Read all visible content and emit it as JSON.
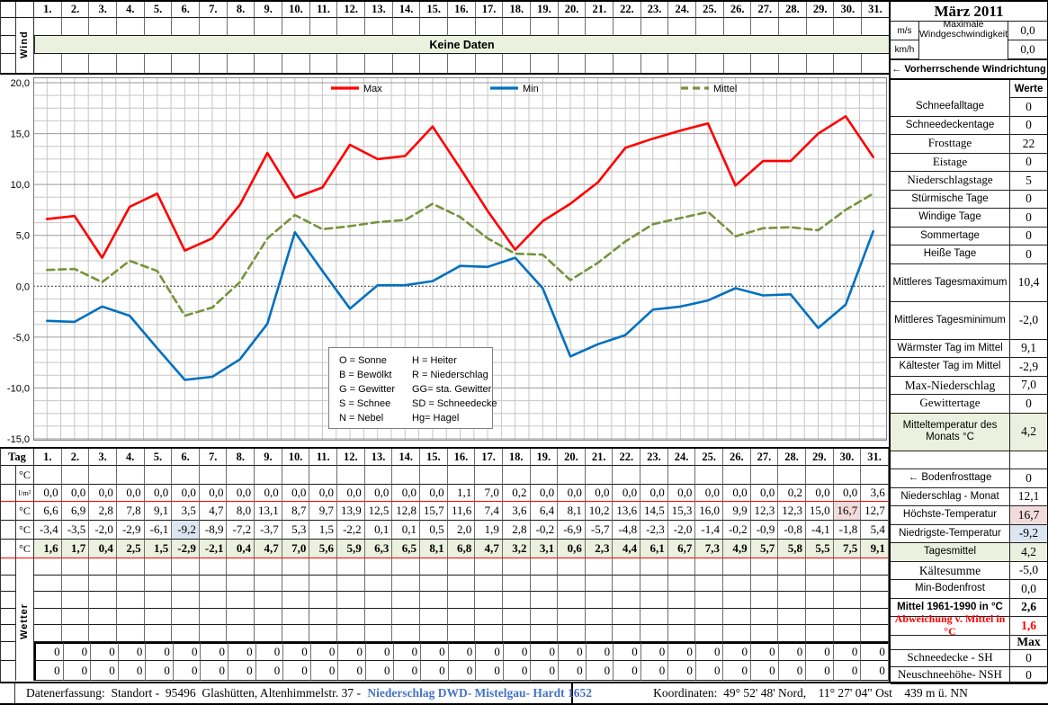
{
  "title": "März 2011",
  "days": [
    "1.",
    "2.",
    "3.",
    "4.",
    "5.",
    "6.",
    "7.",
    "8.",
    "9.",
    "10.",
    "11.",
    "12.",
    "13.",
    "14.",
    "15.",
    "16.",
    "17.",
    "18.",
    "19.",
    "20.",
    "21.",
    "22.",
    "23.",
    "24.",
    "25.",
    "26.",
    "27.",
    "28.",
    "29.",
    "30.",
    "31."
  ],
  "colors": {
    "band_green": "#EBF1DE",
    "highlight_pink": "#F2DCDB",
    "highlight_blue": "#DCE6F1",
    "max_line": "#FF0000",
    "min_line": "#0070C0",
    "mittel_line": "#77933C",
    "link_blue": "#4472C4",
    "alert_red": "#FF0000"
  },
  "wind_panel": {
    "side_label": "Wind",
    "no_data": "Keine Daten",
    "units": [
      "m/s",
      "km/h"
    ],
    "label": "Maximale Windgeschwindigkeit",
    "values": [
      "0,0",
      "0,0"
    ],
    "direction": "←  Vorherrschende Windrichtung"
  },
  "chart_data": {
    "type": "line",
    "x": [
      1,
      2,
      3,
      4,
      5,
      6,
      7,
      8,
      9,
      10,
      11,
      12,
      13,
      14,
      15,
      16,
      17,
      18,
      19,
      20,
      21,
      22,
      23,
      24,
      25,
      26,
      27,
      28,
      29,
      30,
      31
    ],
    "ylim": [
      -15,
      20
    ],
    "ytick_step": 5,
    "grid": true,
    "legend_position": "top-inside",
    "series": [
      {
        "name": "Max",
        "color": "#FF0000",
        "dash": null,
        "values": [
          6.6,
          6.9,
          2.8,
          7.8,
          9.1,
          3.5,
          4.7,
          8.0,
          13.1,
          8.7,
          9.7,
          13.9,
          12.5,
          12.8,
          15.7,
          11.6,
          7.4,
          3.6,
          6.4,
          8.1,
          10.2,
          13.6,
          14.5,
          15.3,
          16.0,
          9.9,
          12.3,
          12.3,
          15.0,
          16.7,
          12.7
        ]
      },
      {
        "name": "Min",
        "color": "#0070C0",
        "dash": null,
        "values": [
          -3.4,
          -3.5,
          -2.0,
          -2.9,
          -6.1,
          -9.2,
          -8.9,
          -7.2,
          -3.7,
          5.3,
          1.5,
          -2.2,
          0.1,
          0.1,
          0.5,
          2.0,
          1.9,
          2.8,
          -0.2,
          -6.9,
          -5.7,
          -4.8,
          -2.3,
          -2.0,
          -1.4,
          -0.2,
          -0.9,
          -0.8,
          -4.1,
          -1.8,
          5.4
        ]
      },
      {
        "name": "Mittel",
        "color": "#77933C",
        "dash": "8,5",
        "values": [
          1.6,
          1.7,
          0.4,
          2.5,
          1.5,
          -2.9,
          -2.1,
          0.4,
          4.7,
          7.0,
          5.6,
          5.9,
          6.3,
          6.5,
          8.1,
          6.8,
          4.7,
          3.2,
          3.1,
          0.6,
          2.3,
          4.4,
          6.1,
          6.7,
          7.3,
          4.9,
          5.7,
          5.8,
          5.5,
          7.5,
          9.1
        ]
      }
    ],
    "weather_codes": {
      "left": [
        "O = Sonne",
        "B = Bewölkt",
        "G = Gewitter",
        "S = Schnee",
        "N = Nebel"
      ],
      "right": [
        "H = Heiter",
        "R = Niederschlag",
        "GG= sta. Gewitter",
        "SD = Schneedecke",
        "Hg= Hagel"
      ]
    }
  },
  "table": {
    "tag_label": "Tag",
    "wetter_label": "Wetter",
    "rows": [
      {
        "unit": "°C",
        "values": null
      },
      {
        "unit": "l/m²",
        "values": [
          0.0,
          0.0,
          0.0,
          0.0,
          0.0,
          0.0,
          0.0,
          0.0,
          0.0,
          0.0,
          0.0,
          0.0,
          0.0,
          0.0,
          0.0,
          1.1,
          7.0,
          0.2,
          0.0,
          0.0,
          0.0,
          0.0,
          0.0,
          0.0,
          0.0,
          0.0,
          0.0,
          0.2,
          0.0,
          0.0,
          3.6
        ],
        "red_bottom": true
      },
      {
        "unit": "°C",
        "series_ref": "Max",
        "highlight_index": 29,
        "highlight": "pink"
      },
      {
        "unit": "°C",
        "series_ref": "Min",
        "highlight_index": 5,
        "highlight": "blue"
      },
      {
        "unit": "°C",
        "series_ref": "Mittel",
        "green": true,
        "red_bottom": true
      }
    ],
    "zero_rows": [
      {
        "value": "0"
      },
      {
        "value": "0"
      }
    ]
  },
  "sidebar": {
    "werte_header": "Werte",
    "stats": [
      {
        "label": "Schneefalltage",
        "value": "0"
      },
      {
        "label": "Schneedeckentage",
        "value": "0"
      },
      {
        "label": "Frosttage",
        "value": "22",
        "serif": true
      },
      {
        "label": "Eistage",
        "value": "0",
        "serif": true
      },
      {
        "label": "Niederschlagstage",
        "value": "5",
        "serif": true
      },
      {
        "label": "Stürmische Tage",
        "value": "0"
      },
      {
        "label": "Windige Tage",
        "value": "0"
      },
      {
        "label": "Sommertage",
        "value": "0"
      },
      {
        "label": "Heiße Tage",
        "value": "0"
      },
      {
        "label": "Mittleres Tagesmaximum",
        "value": "10,4",
        "double": true
      },
      {
        "label": "Mittleres Tagesminimum",
        "value": "-2,0",
        "double": true
      },
      {
        "label": "Wärmster Tag im Mittel",
        "value": "9,1"
      },
      {
        "label": "Kältester Tag im Mittel",
        "value": "-2,9"
      },
      {
        "label": "Max-Niederschlag",
        "value": "7,0",
        "serif": true,
        "big": true
      },
      {
        "label": "Gewittertage",
        "value": "0",
        "serif": true
      },
      {
        "label": "Mitteltemperatur des Monats °C",
        "value": "4,2",
        "double": true,
        "green": true
      },
      {
        "label": "",
        "value": "",
        "spacer": true
      },
      {
        "label": "← Bodenfrosttage",
        "value": "0"
      },
      {
        "label": "Niederschlag - Monat",
        "value": "12,1",
        "red_bottom": true
      },
      {
        "label": "Höchste-Temperatur",
        "value": "16,7",
        "val_bg": "pink"
      },
      {
        "label": "Niedrigste-Temperatur",
        "value": "-9,2",
        "val_bg": "blue"
      },
      {
        "label": "Tagesmittel",
        "value": "4,2",
        "green": true,
        "red_bottom": true
      },
      {
        "label": "Kältesumme",
        "value": "-5,0",
        "serif": true,
        "big": true
      },
      {
        "label": "Min-Bodenfrost",
        "value": "0,0"
      },
      {
        "label": "Mittel 1961-1990 in °C",
        "value": "2,6",
        "bold": true
      },
      {
        "label": "Abweichung v. Mittel in °C",
        "value": "1,6",
        "red": true
      },
      {
        "label": "",
        "value": "Max",
        "max_header": true
      },
      {
        "label": "Schneedecke -   SH",
        "value": "0",
        "serif": true,
        "bottom": true
      },
      {
        "label": "Neuschneehöhe- NSH",
        "value": "0",
        "serif": true,
        "bottom": true
      }
    ]
  },
  "footer": {
    "left_prefix": "Datenerfassung:  Standort -  95496  Glashütten, Altenhimmelstr. 37 - ",
    "left_link": "Niederschlag DWD- Mistelgau- Hardt 1652",
    "right": "Koordinaten:  49° 52' 48' Nord,    11° 27' 04\" Ost    439 m ü. NN"
  }
}
